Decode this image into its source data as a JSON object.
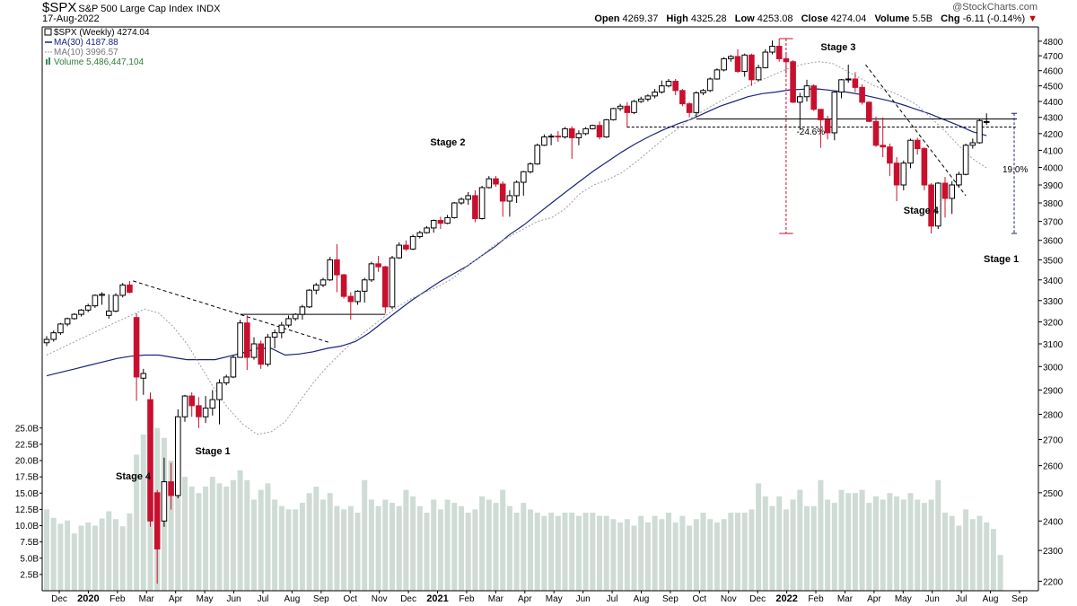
{
  "header": {
    "symbol": "$SPX",
    "index_name": "S&P 500 Large Cap Index",
    "exchange": "INDX",
    "date": "17-Aug-2022",
    "open_label": "Open",
    "open": "4269.37",
    "high_label": "High",
    "high": "4325.28",
    "low_label": "Low",
    "low": "4253.08",
    "close_label": "Close",
    "close": "4274.04",
    "volume_label": "Volume",
    "volume": "5.5B",
    "chg_label": "Chg",
    "chg": "-6.11 (-0.14%)",
    "brand": "@StockCharts.com"
  },
  "legend": {
    "price": "$SPX (Weekly) 4274.04",
    "ma30": "MA(30) 4187.88",
    "ma10": "MA(10) 3996.57",
    "volume": "Volume 5,486,447,104"
  },
  "colors": {
    "up": "#000000",
    "down": "#c8102e",
    "ma30": "#1a237e",
    "ma10": "#9e9e9e",
    "volume": "#cfdcd5",
    "guide": "#000000",
    "range": "#c8102e"
  },
  "chart_data": {
    "type": "candlestick",
    "title": "$SPX S&P 500 Large Cap Index INDX",
    "price_axis": {
      "ticks": [
        2200,
        2300,
        2400,
        2500,
        2600,
        2700,
        2800,
        2900,
        3000,
        3100,
        3200,
        3300,
        3400,
        3500,
        3600,
        3700,
        3800,
        3900,
        4000,
        4100,
        4200,
        4300,
        4400,
        4500,
        4600,
        4700,
        4800
      ],
      "scale": "log",
      "range": [
        2170,
        4900
      ]
    },
    "volume_axis": {
      "ticks": [
        "2.5B",
        "5.0B",
        "7.5B",
        "10.0B",
        "12.5B",
        "15.0B",
        "17.5B",
        "20.0B",
        "22.5B",
        "25.0B"
      ],
      "range": [
        0,
        27
      ]
    },
    "x_axis": {
      "labels": [
        "Dec",
        "2020",
        "Feb",
        "Mar",
        "Apr",
        "May",
        "Jun",
        "Jul",
        "Aug",
        "Sep",
        "Oct",
        "Nov",
        "Dec",
        "2021",
        "Feb",
        "Mar",
        "Apr",
        "May",
        "Jun",
        "Jul",
        "Aug",
        "Sep",
        "Oct",
        "Nov",
        "Dec",
        "2022",
        "Feb",
        "Mar",
        "Apr",
        "May",
        "Jun",
        "Jul",
        "Aug",
        "Sep"
      ],
      "bold": [
        "2020",
        "2021",
        "2022"
      ]
    },
    "candles": [
      {
        "o": 3105,
        "c": 3120,
        "h": 3135,
        "l": 3090
      },
      {
        "o": 3120,
        "c": 3150,
        "h": 3160,
        "l": 3110
      },
      {
        "o": 3150,
        "c": 3190,
        "h": 3195,
        "l": 3140
      },
      {
        "o": 3190,
        "c": 3215,
        "h": 3220,
        "l": 3180
      },
      {
        "o": 3215,
        "c": 3235,
        "h": 3240,
        "l": 3210
      },
      {
        "o": 3235,
        "c": 3255,
        "h": 3260,
        "l": 3225
      },
      {
        "o": 3255,
        "c": 3275,
        "h": 3285,
        "l": 3245
      },
      {
        "o": 3275,
        "c": 3325,
        "h": 3330,
        "l": 3265
      },
      {
        "o": 3325,
        "c": 3330,
        "h": 3340,
        "l": 3280
      },
      {
        "o": 3230,
        "c": 3250,
        "h": 3330,
        "l": 3215
      },
      {
        "o": 3250,
        "c": 3325,
        "h": 3335,
        "l": 3245
      },
      {
        "o": 3325,
        "c": 3375,
        "h": 3385,
        "l": 3315
      },
      {
        "o": 3375,
        "c": 3340,
        "h": 3395,
        "l": 3335
      },
      {
        "o": 3220,
        "c": 2955,
        "h": 3240,
        "l": 2855
      },
      {
        "o": 2950,
        "c": 2970,
        "h": 2990,
        "l": 2880
      },
      {
        "o": 2860,
        "c": 2400,
        "h": 2890,
        "l": 2380
      },
      {
        "o": 2500,
        "c": 2305,
        "h": 2510,
        "l": 2192
      },
      {
        "o": 2400,
        "c": 2540,
        "h": 2630,
        "l": 2380
      },
      {
        "o": 2540,
        "c": 2490,
        "h": 2610,
        "l": 2440
      },
      {
        "o": 2490,
        "c": 2790,
        "h": 2820,
        "l": 2480
      },
      {
        "o": 2790,
        "c": 2875,
        "h": 2880,
        "l": 2770
      },
      {
        "o": 2875,
        "c": 2835,
        "h": 2890,
        "l": 2790
      },
      {
        "o": 2835,
        "c": 2790,
        "h": 2870,
        "l": 2745
      },
      {
        "o": 2790,
        "c": 2825,
        "h": 2875,
        "l": 2765
      },
      {
        "o": 2825,
        "c": 2860,
        "h": 2900,
        "l": 2795
      },
      {
        "o": 2860,
        "c": 2930,
        "h": 2945,
        "l": 2760
      },
      {
        "o": 2930,
        "c": 2955,
        "h": 2965,
        "l": 2920
      },
      {
        "o": 2955,
        "c": 3040,
        "h": 3050,
        "l": 2950
      },
      {
        "o": 3040,
        "c": 3195,
        "h": 3210,
        "l": 3040
      },
      {
        "o": 3195,
        "c": 3040,
        "h": 3230,
        "l": 2985
      },
      {
        "o": 3040,
        "c": 3100,
        "h": 3130,
        "l": 3030
      },
      {
        "o": 3100,
        "c": 3010,
        "h": 3115,
        "l": 2990
      },
      {
        "o": 3010,
        "c": 3130,
        "h": 3145,
        "l": 3000
      },
      {
        "o": 3130,
        "c": 3150,
        "h": 3165,
        "l": 3080
      },
      {
        "o": 3150,
        "c": 3185,
        "h": 3200,
        "l": 3125
      },
      {
        "o": 3185,
        "c": 3215,
        "h": 3230,
        "l": 3175
      },
      {
        "o": 3215,
        "c": 3235,
        "h": 3240,
        "l": 3205
      },
      {
        "o": 3235,
        "c": 3270,
        "h": 3280,
        "l": 3210
      },
      {
        "o": 3270,
        "c": 3350,
        "h": 3355,
        "l": 3265
      },
      {
        "o": 3350,
        "c": 3375,
        "h": 3385,
        "l": 3330
      },
      {
        "o": 3375,
        "c": 3400,
        "h": 3410,
        "l": 3365
      },
      {
        "o": 3400,
        "c": 3500,
        "h": 3515,
        "l": 3395
      },
      {
        "o": 3500,
        "c": 3425,
        "h": 3580,
        "l": 3340
      },
      {
        "o": 3425,
        "c": 3320,
        "h": 3430,
        "l": 3310
      },
      {
        "o": 3320,
        "c": 3295,
        "h": 3340,
        "l": 3210
      },
      {
        "o": 3295,
        "c": 3345,
        "h": 3350,
        "l": 3280
      },
      {
        "o": 3345,
        "c": 3400,
        "h": 3410,
        "l": 3290
      },
      {
        "o": 3400,
        "c": 3480,
        "h": 3490,
        "l": 3390
      },
      {
        "o": 3480,
        "c": 3465,
        "h": 3520,
        "l": 3440
      },
      {
        "o": 3465,
        "c": 3270,
        "h": 3470,
        "l": 3240
      },
      {
        "o": 3270,
        "c": 3510,
        "h": 3520,
        "l": 3260
      },
      {
        "o": 3510,
        "c": 3575,
        "h": 3590,
        "l": 3505
      },
      {
        "o": 3575,
        "c": 3555,
        "h": 3600,
        "l": 3545
      },
      {
        "o": 3555,
        "c": 3620,
        "h": 3630,
        "l": 3550
      },
      {
        "o": 3620,
        "c": 3640,
        "h": 3650,
        "l": 3610
      },
      {
        "o": 3640,
        "c": 3665,
        "h": 3675,
        "l": 3635
      },
      {
        "o": 3665,
        "c": 3705,
        "h": 3710,
        "l": 3640
      },
      {
        "o": 3705,
        "c": 3690,
        "h": 3725,
        "l": 3660
      },
      {
        "o": 3690,
        "c": 3720,
        "h": 3735,
        "l": 3685
      },
      {
        "o": 3720,
        "c": 3800,
        "h": 3805,
        "l": 3715
      },
      {
        "o": 3800,
        "c": 3820,
        "h": 3830,
        "l": 3790
      },
      {
        "o": 3820,
        "c": 3840,
        "h": 3860,
        "l": 3790
      },
      {
        "o": 3840,
        "c": 3715,
        "h": 3870,
        "l": 3695
      },
      {
        "o": 3715,
        "c": 3885,
        "h": 3895,
        "l": 3710
      },
      {
        "o": 3885,
        "c": 3935,
        "h": 3950,
        "l": 3880
      },
      {
        "o": 3935,
        "c": 3905,
        "h": 3950,
        "l": 3890
      },
      {
        "o": 3905,
        "c": 3810,
        "h": 3920,
        "l": 3725
      },
      {
        "o": 3810,
        "c": 3840,
        "h": 3870,
        "l": 3725
      },
      {
        "o": 3840,
        "c": 3915,
        "h": 3925,
        "l": 3800
      },
      {
        "o": 3915,
        "c": 3975,
        "h": 3980,
        "l": 3840
      },
      {
        "o": 3975,
        "c": 4020,
        "h": 4030,
        "l": 3965
      },
      {
        "o": 4020,
        "c": 4130,
        "h": 4140,
        "l": 4015
      },
      {
        "o": 4130,
        "c": 4180,
        "h": 4195,
        "l": 4125
      },
      {
        "o": 4180,
        "c": 4185,
        "h": 4200,
        "l": 4130
      },
      {
        "o": 4185,
        "c": 4180,
        "h": 4215,
        "l": 4150
      },
      {
        "o": 4180,
        "c": 4230,
        "h": 4240,
        "l": 4170
      },
      {
        "o": 4230,
        "c": 4175,
        "h": 4245,
        "l": 4050
      },
      {
        "o": 4175,
        "c": 4200,
        "h": 4220,
        "l": 4130
      },
      {
        "o": 4200,
        "c": 4230,
        "h": 4240,
        "l": 4190
      },
      {
        "o": 4230,
        "c": 4250,
        "h": 4255,
        "l": 4225
      },
      {
        "o": 4250,
        "c": 4180,
        "h": 4275,
        "l": 4165
      },
      {
        "o": 4180,
        "c": 4285,
        "h": 4290,
        "l": 4175
      },
      {
        "o": 4285,
        "c": 4355,
        "h": 4360,
        "l": 4280
      },
      {
        "o": 4355,
        "c": 4370,
        "h": 4385,
        "l": 4340
      },
      {
        "o": 4370,
        "c": 4330,
        "h": 4395,
        "l": 4235
      },
      {
        "o": 4330,
        "c": 4400,
        "h": 4410,
        "l": 4320
      },
      {
        "o": 4400,
        "c": 4415,
        "h": 4430,
        "l": 4390
      },
      {
        "o": 4415,
        "c": 4435,
        "h": 4445,
        "l": 4400
      },
      {
        "o": 4435,
        "c": 4460,
        "h": 4480,
        "l": 4420
      },
      {
        "o": 4460,
        "c": 4500,
        "h": 4535,
        "l": 4450
      },
      {
        "o": 4500,
        "c": 4530,
        "h": 4545,
        "l": 4490
      },
      {
        "o": 4530,
        "c": 4470,
        "h": 4545,
        "l": 4440
      },
      {
        "o": 4470,
        "c": 4385,
        "h": 4480,
        "l": 4370
      },
      {
        "o": 4385,
        "c": 4330,
        "h": 4395,
        "l": 4300
      },
      {
        "o": 4330,
        "c": 4455,
        "h": 4465,
        "l": 4300
      },
      {
        "o": 4455,
        "c": 4470,
        "h": 4480,
        "l": 4440
      },
      {
        "o": 4470,
        "c": 4545,
        "h": 4555,
        "l": 4460
      },
      {
        "o": 4545,
        "c": 4605,
        "h": 4615,
        "l": 4540
      },
      {
        "o": 4605,
        "c": 4680,
        "h": 4690,
        "l": 4595
      },
      {
        "o": 4680,
        "c": 4695,
        "h": 4705,
        "l": 4660
      },
      {
        "o": 4695,
        "c": 4595,
        "h": 4745,
        "l": 4585
      },
      {
        "o": 4595,
        "c": 4705,
        "h": 4715,
        "l": 4560
      },
      {
        "o": 4705,
        "c": 4540,
        "h": 4715,
        "l": 4500
      },
      {
        "o": 4540,
        "c": 4620,
        "h": 4640,
        "l": 4530
      },
      {
        "o": 4620,
        "c": 4725,
        "h": 4745,
        "l": 4615
      },
      {
        "o": 4725,
        "c": 4765,
        "h": 4805,
        "l": 4710
      },
      {
        "o": 4765,
        "c": 4680,
        "h": 4818,
        "l": 4660
      },
      {
        "o": 4680,
        "c": 4660,
        "h": 4720,
        "l": 4580
      },
      {
        "o": 4660,
        "c": 4395,
        "h": 4670,
        "l": 4390
      },
      {
        "o": 4395,
        "c": 4430,
        "h": 4455,
        "l": 4225
      },
      {
        "o": 4430,
        "c": 4500,
        "h": 4540,
        "l": 4400
      },
      {
        "o": 4500,
        "c": 4350,
        "h": 4510,
        "l": 4340
      },
      {
        "o": 4350,
        "c": 4285,
        "h": 4350,
        "l": 4115
      },
      {
        "o": 4285,
        "c": 4205,
        "h": 4310,
        "l": 4165
      },
      {
        "o": 4205,
        "c": 4460,
        "h": 4465,
        "l": 4160
      },
      {
        "o": 4460,
        "c": 4540,
        "h": 4545,
        "l": 4420
      },
      {
        "o": 4540,
        "c": 4545,
        "h": 4640,
        "l": 4520
      },
      {
        "o": 4545,
        "c": 4490,
        "h": 4590,
        "l": 4460
      },
      {
        "o": 4490,
        "c": 4395,
        "h": 4510,
        "l": 4380
      },
      {
        "o": 4395,
        "c": 4275,
        "h": 4400,
        "l": 4270
      },
      {
        "o": 4275,
        "c": 4130,
        "h": 4305,
        "l": 4120
      },
      {
        "o": 4130,
        "c": 4120,
        "h": 4300,
        "l": 4060
      },
      {
        "o": 4120,
        "c": 4025,
        "h": 4140,
        "l": 3950
      },
      {
        "o": 4025,
        "c": 3900,
        "h": 4060,
        "l": 3810
      },
      {
        "o": 3900,
        "c": 4025,
        "h": 4040,
        "l": 3870
      },
      {
        "o": 4025,
        "c": 4160,
        "h": 4170,
        "l": 3995
      },
      {
        "o": 4160,
        "c": 4110,
        "h": 4175,
        "l": 4075
      },
      {
        "o": 4110,
        "c": 3900,
        "h": 4120,
        "l": 3870
      },
      {
        "o": 3900,
        "c": 3675,
        "h": 3910,
        "l": 3636
      },
      {
        "o": 3675,
        "c": 3910,
        "h": 3915,
        "l": 3660
      },
      {
        "o": 3910,
        "c": 3825,
        "h": 3945,
        "l": 3720
      },
      {
        "o": 3825,
        "c": 3900,
        "h": 3920,
        "l": 3740
      },
      {
        "o": 3900,
        "c": 3960,
        "h": 3975,
        "l": 3885
      },
      {
        "o": 3960,
        "c": 4130,
        "h": 4140,
        "l": 3955
      },
      {
        "o": 4130,
        "c": 4145,
        "h": 4170,
        "l": 4110
      },
      {
        "o": 4145,
        "c": 4280,
        "h": 4290,
        "l": 4140
      },
      {
        "o": 4269,
        "c": 4274,
        "h": 4325,
        "l": 4253
      }
    ],
    "ma30": [
      2960,
      2975,
      2990,
      3005,
      3020,
      3035,
      3045,
      3050,
      3050,
      3040,
      3030,
      3030,
      3030,
      3045,
      3060,
      3080,
      3080,
      3050,
      3055,
      3065,
      3080,
      3090,
      3110,
      3150,
      3200,
      3250,
      3300,
      3345,
      3390,
      3430,
      3470,
      3520,
      3570,
      3630,
      3680,
      3740,
      3800,
      3860,
      3920,
      3980,
      4035,
      4090,
      4140,
      4185,
      4225,
      4260,
      4290,
      4330,
      4370,
      4400,
      4430,
      4450,
      4460,
      4475,
      4478,
      4480,
      4470,
      4460,
      4445,
      4425,
      4405,
      4380,
      4350,
      4320,
      4285,
      4250,
      4212,
      4188
    ],
    "ma10": [
      3050,
      3080,
      3110,
      3140,
      3170,
      3200,
      3230,
      3260,
      3240,
      3180,
      3100,
      3000,
      2900,
      2820,
      2760,
      2720,
      2730,
      2770,
      2850,
      2930,
      3000,
      3060,
      3120,
      3170,
      3220,
      3270,
      3310,
      3340,
      3370,
      3410,
      3470,
      3520,
      3580,
      3620,
      3660,
      3700,
      3720,
      3770,
      3850,
      3900,
      3930,
      3970,
      4030,
      4100,
      4170,
      4230,
      4300,
      4350,
      4400,
      4450,
      4500,
      4540,
      4580,
      4620,
      4645,
      4660,
      4650,
      4600,
      4550,
      4500,
      4470,
      4430,
      4380,
      4300,
      4220,
      4130,
      4050,
      3997
    ],
    "volume_b": [
      12.5,
      11.2,
      10.3,
      10.8,
      8.8,
      10.0,
      10.5,
      10.0,
      11.1,
      12.2,
      11.0,
      9.9,
      11.9,
      20.9,
      24.0,
      26.0,
      25.0,
      23.5,
      20.0,
      19.5,
      17.5,
      16.0,
      15.0,
      16.0,
      17.5,
      16.5,
      16.0,
      17.0,
      18.5,
      17.0,
      14.0,
      15.5,
      16.5,
      14.0,
      13.0,
      12.5,
      12.5,
      13.5,
      15.0,
      16.0,
      14.0,
      15.0,
      13.0,
      12.5,
      13.0,
      12.0,
      17.0,
      14.0,
      13.0,
      14.0,
      13.5,
      13.0,
      15.5,
      14.5,
      13.0,
      12.0,
      14.0,
      12.5,
      14.0,
      13.5,
      13.0,
      12.0,
      12.5,
      14.5,
      14.0,
      13.5,
      15.5,
      13.0,
      12.0,
      13.5,
      12.5,
      12.0,
      11.5,
      12.0,
      11.5,
      12.0,
      12.0,
      11.5,
      12.0,
      12.0,
      11.5,
      11.5,
      11.0,
      10.5,
      11.0,
      10.0,
      11.5,
      10.5,
      11.5,
      11.0,
      12.0,
      10.5,
      11.5,
      10.0,
      11.0,
      12.0,
      11.0,
      10.5,
      11.0,
      12.0,
      12.0,
      12.0,
      12.5,
      16.5,
      14.5,
      13.0,
      14.5,
      12.5,
      14.0,
      15.5,
      13.0,
      13.0,
      17.0,
      14.0,
      13.5,
      15.5,
      15.0,
      15.0,
      15.5,
      13.5,
      14.5,
      14.0,
      15.0,
      14.5,
      14.0,
      15.0,
      14.0,
      13.5,
      14.0,
      17.0,
      12.0,
      11.5,
      10.0,
      12.5,
      11.0,
      11.5,
      10.5,
      9.5,
      5.5
    ],
    "annotations": [
      "Stage 1",
      "Stage 2",
      "Stage 3",
      "Stage 4",
      "Stage 4",
      "Stage 1",
      "-24.6%",
      "19.0%"
    ],
    "grid": false,
    "legend": "top-left"
  }
}
